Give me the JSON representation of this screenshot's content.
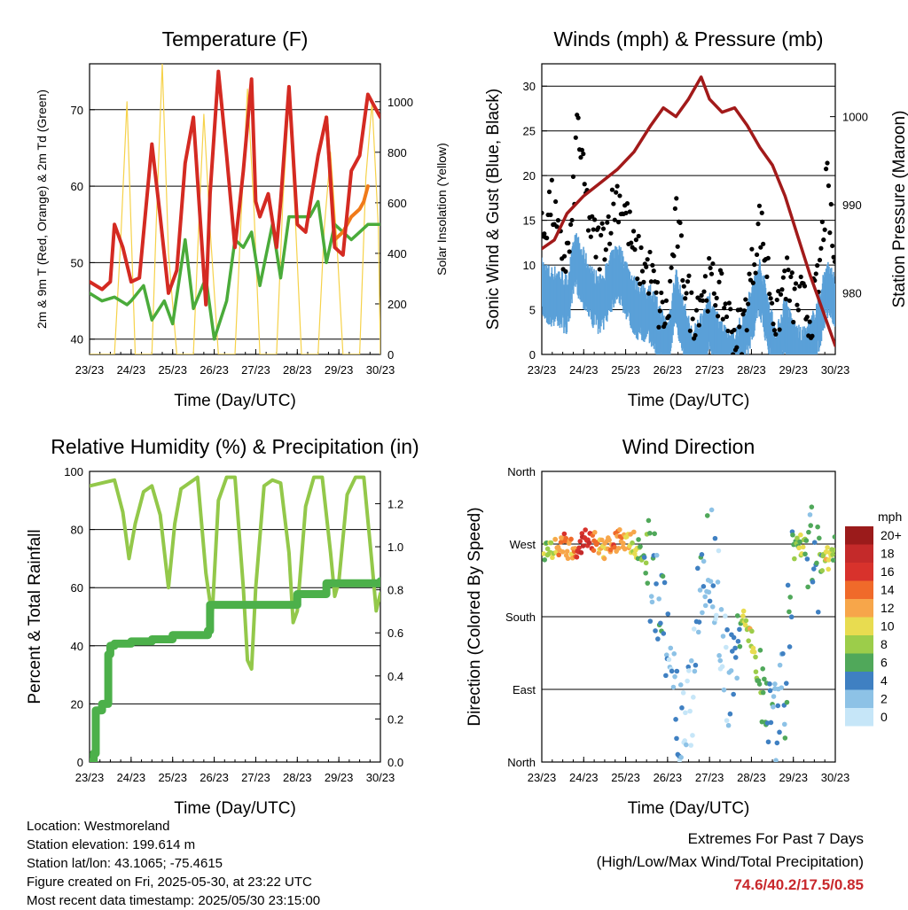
{
  "x_tick_labels": [
    "23/23",
    "24/23",
    "25/23",
    "26/23",
    "27/23",
    "28/23",
    "29/23",
    "30/23"
  ],
  "xlabel": "Time (Day/UTC)",
  "colors": {
    "temp_red": "#d42a22",
    "temp_orange": "#f07a1a",
    "dewpoint_green": "#4aab3a",
    "solar_yellow": "#f6d24a",
    "gust_black": "#000000",
    "wind_blue": "#5aa0d8",
    "pressure_maroon": "#a21a1a",
    "rh_lightgreen": "#93c84a",
    "precip_green": "#4cb04a"
  },
  "chart_data": [
    {
      "type": "line",
      "title": "Temperature (F)",
      "xlabel": "Time (Day/UTC)",
      "ylabel": "2m & 9m T (Red, Orange) & 2m Td (Green)",
      "ylabel_right": "Solar Insolation (Yellow)",
      "xlim": [
        0,
        7
      ],
      "ylim": [
        38,
        76
      ],
      "ylim_right": [
        0,
        1150
      ],
      "yticks": [
        40,
        50,
        60,
        70
      ],
      "yticks_right": [
        0,
        200,
        400,
        600,
        800,
        1000
      ],
      "series": [
        {
          "name": "2m T",
          "x": [
            0,
            0.3,
            0.5,
            0.6,
            0.8,
            1.0,
            1.2,
            1.5,
            1.7,
            1.9,
            2.1,
            2.3,
            2.5,
            2.8,
            2.9,
            3.1,
            3.3,
            3.5,
            3.7,
            3.9,
            4.0,
            4.1,
            4.3,
            4.5,
            4.6,
            4.8,
            5.0,
            5.2,
            5.5,
            5.7,
            5.9,
            6.1,
            6.3,
            6.5,
            6.7,
            6.8,
            7.0
          ],
          "values": [
            47.5,
            46.5,
            47.5,
            55,
            52,
            47.5,
            48,
            65.5,
            56,
            46,
            49,
            63,
            69,
            44.5,
            59,
            75,
            64,
            52,
            62,
            74,
            58,
            56,
            59,
            52,
            58,
            73,
            55,
            54,
            64,
            69,
            52,
            51,
            62,
            64,
            72,
            71,
            69
          ]
        },
        {
          "name": "9m T",
          "x": [
            5.7,
            5.9,
            6.1,
            6.3,
            6.5,
            6.6,
            6.7
          ],
          "values": [
            69,
            53,
            54,
            56,
            57,
            58,
            60
          ]
        },
        {
          "name": "2m Td",
          "x": [
            0,
            0.3,
            0.6,
            0.9,
            1.0,
            1.3,
            1.5,
            1.8,
            2.0,
            2.3,
            2.5,
            2.8,
            3.0,
            3.3,
            3.5,
            3.7,
            3.9,
            4.1,
            4.4,
            4.6,
            4.8,
            5.0,
            5.3,
            5.5,
            5.7,
            5.9,
            6.1,
            6.3,
            6.5,
            6.7,
            7.0
          ],
          "values": [
            46,
            45,
            45.5,
            44.5,
            45,
            47,
            42.5,
            45,
            42,
            53,
            44,
            48,
            40,
            45,
            53,
            52,
            54,
            47,
            55,
            48,
            56,
            56,
            56,
            58,
            50,
            55,
            54,
            53,
            54,
            55,
            55
          ]
        },
        {
          "name": "Solar Insolation",
          "x": [
            0,
            0.6,
            0.75,
            0.9,
            1.1,
            1.5,
            1.6,
            1.75,
            1.9,
            2.1,
            2.5,
            2.65,
            2.75,
            2.9,
            3.1,
            3.5,
            3.65,
            3.8,
            3.95,
            4.1,
            4.5,
            4.65,
            4.8,
            4.95,
            5.1,
            5.5,
            5.65,
            5.8,
            5.95,
            6.1,
            6.5,
            6.65,
            6.8,
            6.95,
            7.0
          ],
          "values": [
            0,
            0,
            450,
            1000,
            0,
            0,
            500,
            1150,
            400,
            0,
            0,
            600,
            950,
            500,
            0,
            0,
            550,
            1050,
            600,
            0,
            0,
            600,
            1000,
            550,
            0,
            0,
            500,
            800,
            450,
            0,
            0,
            700,
            1000,
            500,
            0
          ]
        }
      ]
    },
    {
      "type": "scatter",
      "title": "Winds (mph) & Pressure (mb)",
      "xlabel": "Time (Day/UTC)",
      "ylabel": "Sonic Wind & Gust (Blue, Black)",
      "ylabel_right": "Station Pressure (Maroon)",
      "xlim": [
        0,
        7
      ],
      "ylim": [
        0,
        32.5
      ],
      "ylim_right": [
        973,
        1006
      ],
      "yticks": [
        0,
        5,
        10,
        15,
        20,
        25,
        30
      ],
      "yticks_right": [
        980,
        990,
        1000
      ],
      "series": [
        {
          "name": "Gust",
          "x": [
            0,
            0.1,
            0.2,
            0.3,
            0.4,
            0.5,
            0.6,
            0.7,
            0.8,
            0.85,
            0.9,
            1.0,
            1.2,
            1.4,
            1.6,
            1.8,
            2.0,
            2.2,
            2.4,
            2.6,
            2.8,
            3.0,
            3.2,
            3.4,
            3.6,
            3.8,
            4.0,
            4.2,
            4.4,
            4.6,
            4.8,
            5.0,
            5.2,
            5.4,
            5.6,
            5.8,
            6.0,
            6.2,
            6.4,
            6.6,
            6.8,
            7.0
          ],
          "values": [
            14,
            16,
            18,
            17,
            13,
            12,
            12,
            14,
            22,
            28,
            25,
            20,
            14,
            13,
            16,
            19,
            17,
            12,
            11,
            10,
            6,
            5,
            16,
            10,
            5,
            8,
            9,
            8,
            6,
            3,
            4,
            10,
            16,
            10,
            4,
            10,
            7,
            7,
            5,
            9,
            20,
            10
          ]
        },
        {
          "name": "Sonic Wind",
          "x": [
            0,
            0.2,
            0.4,
            0.6,
            0.8,
            1.0,
            1.2,
            1.4,
            1.6,
            1.8,
            2.0,
            2.2,
            2.4,
            2.6,
            2.8,
            3.0,
            3.2,
            3.4,
            3.6,
            3.8,
            4.0,
            4.2,
            4.4,
            4.6,
            4.8,
            5.0,
            5.2,
            5.4,
            5.6,
            5.8,
            6.0,
            6.2,
            6.4,
            6.6,
            6.8,
            7.0
          ],
          "values": [
            9,
            8,
            8,
            7,
            12,
            10,
            8,
            7,
            9,
            11,
            9,
            7,
            6,
            6,
            4,
            2,
            8,
            4,
            1,
            3,
            5,
            3,
            1,
            1,
            3,
            6,
            9,
            5,
            1,
            5,
            2,
            1,
            2,
            5,
            9,
            7
          ]
        },
        {
          "name": "Station Pressure",
          "x": [
            0,
            0.3,
            0.6,
            1.0,
            1.4,
            1.8,
            2.2,
            2.6,
            2.9,
            3.2,
            3.5,
            3.8,
            4.0,
            4.3,
            4.6,
            4.9,
            5.2,
            5.5,
            5.8,
            6.1,
            6.4,
            6.7,
            7.0
          ],
          "values": [
            985,
            986,
            989,
            991,
            992.5,
            994,
            996,
            999,
            1001,
            1000,
            1002,
            1004.5,
            1002,
            1000.5,
            1001,
            999,
            996.5,
            994.5,
            991,
            986.5,
            982,
            978,
            974
          ]
        }
      ]
    },
    {
      "type": "line",
      "title": "Relative Humidity (%) & Precipitation (in)",
      "xlabel": "Time (Day/UTC)",
      "ylabel": "Percent & Total Rainfall",
      "xlim": [
        0,
        7
      ],
      "ylim": [
        0,
        100
      ],
      "ylim_right": [
        0,
        1.35
      ],
      "yticks": [
        0,
        20,
        40,
        60,
        80,
        100
      ],
      "yticks_right": [
        0.0,
        0.2,
        0.4,
        0.6,
        0.8,
        1.0,
        1.2
      ],
      "series": [
        {
          "name": "Relative Humidity",
          "x": [
            0,
            0.3,
            0.6,
            0.8,
            0.95,
            1.1,
            1.3,
            1.5,
            1.7,
            1.9,
            2.05,
            2.2,
            2.4,
            2.6,
            2.8,
            2.95,
            3.1,
            3.3,
            3.5,
            3.7,
            3.8,
            3.9,
            4.0,
            4.2,
            4.4,
            4.6,
            4.8,
            4.9,
            5.0,
            5.2,
            5.4,
            5.6,
            5.8,
            5.9,
            6.0,
            6.2,
            6.4,
            6.6,
            6.8,
            6.9,
            7.0
          ],
          "values": [
            95,
            96,
            97,
            86,
            70,
            82,
            93,
            95,
            85,
            60,
            82,
            94,
            96,
            98,
            65,
            50,
            90,
            98,
            98,
            60,
            35,
            32,
            60,
            95,
            97,
            96,
            72,
            48,
            52,
            88,
            98,
            98,
            72,
            57,
            62,
            92,
            98,
            98,
            68,
            52,
            58
          ]
        },
        {
          "name": "Total Precipitation",
          "x": [
            0,
            0.1,
            0.15,
            0.3,
            0.45,
            0.5,
            0.6,
            1.0,
            1.5,
            2.0,
            2.5,
            2.85,
            2.9,
            3.5,
            4.0,
            4.5,
            4.9,
            5.0,
            5.5,
            5.7,
            6.0,
            6.5,
            7.0
          ],
          "values": [
            0,
            0.04,
            0.24,
            0.27,
            0.5,
            0.54,
            0.55,
            0.56,
            0.57,
            0.59,
            0.59,
            0.61,
            0.73,
            0.73,
            0.73,
            0.73,
            0.73,
            0.78,
            0.78,
            0.83,
            0.83,
            0.83,
            0.84
          ]
        }
      ]
    },
    {
      "type": "scatter",
      "title": "Wind Direction",
      "xlabel": "Time (Day/UTC)",
      "ylabel": "Direction (Colored By Speed)",
      "xlim": [
        0,
        7
      ],
      "ylim": [
        0,
        360
      ],
      "yticks": [
        0,
        90,
        180,
        270,
        360
      ],
      "ytick_labels": [
        "North",
        "East",
        "South",
        "West",
        "North"
      ],
      "legend_title": "mph",
      "legend_labels": [
        "20+",
        "18",
        "16",
        "14",
        "12",
        "10",
        "8",
        "6",
        "4",
        "2",
        "0"
      ],
      "legend_colors": [
        "#9b1b1b",
        "#c42a2a",
        "#d8322c",
        "#f06a2a",
        "#f7a64a",
        "#e8dc50",
        "#9ccd4a",
        "#50a85a",
        "#3f80c2",
        "#8dc2e6",
        "#c6e6f8"
      ],
      "series": [
        {
          "name": "Direction",
          "x": [
            0.1,
            0.3,
            0.5,
            0.7,
            0.9,
            1.1,
            1.3,
            1.5,
            1.7,
            1.9,
            2.1,
            2.3,
            2.5,
            2.7,
            2.9,
            3.0,
            3.2,
            3.4,
            3.6,
            3.8,
            4.0,
            4.2,
            4.4,
            4.6,
            4.8,
            5.0,
            5.2,
            5.4,
            5.6,
            5.8,
            6.0,
            6.2,
            6.4,
            6.6,
            6.8,
            7.0
          ],
          "values": [
            265,
            268,
            270,
            262,
            272,
            275,
            270,
            262,
            268,
            280,
            275,
            265,
            240,
            230,
            180,
            120,
            60,
            20,
            100,
            240,
            270,
            200,
            120,
            90,
            190,
            150,
            100,
            90,
            60,
            90,
            260,
            270,
            255,
            240,
            250,
            270
          ],
          "speeds": [
            8,
            10,
            14,
            12,
            16,
            18,
            12,
            10,
            14,
            12,
            10,
            8,
            6,
            4,
            4,
            2,
            3,
            2,
            1,
            4,
            3,
            2,
            1,
            3,
            8,
            10,
            6,
            4,
            3,
            4,
            6,
            8,
            4,
            5,
            10,
            7
          ]
        }
      ]
    }
  ],
  "info": {
    "location": "Location: Westmoreland",
    "elevation": "Station elevation: 199.614 m",
    "latlon": "Station lat/lon: 43.1065; -75.4615",
    "created": "Figure created on Fri, 2025-05-30, at 23:22 UTC",
    "latest": "Most recent data timestamp: 2025/05/30 23:15:00"
  },
  "extremes": {
    "line1": "Extremes For Past 7 Days",
    "line2": "(High/Low/Max Wind/Total Precipitation)",
    "values": "74.6/40.2/17.5/0.85"
  }
}
